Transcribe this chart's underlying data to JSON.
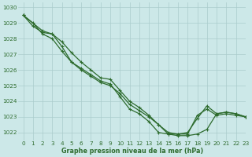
{
  "title": "Graphe pression niveau de la mer (hPa)",
  "bg_color": "#cce8e8",
  "grid_color": "#aacccc",
  "line_color": "#2d6b2d",
  "xlim": [
    -0.5,
    23
  ],
  "ylim": [
    1021.5,
    1030.3
  ],
  "yticks": [
    1022,
    1023,
    1024,
    1025,
    1026,
    1027,
    1028,
    1029,
    1030
  ],
  "xticks": [
    0,
    1,
    2,
    3,
    4,
    5,
    6,
    7,
    8,
    9,
    10,
    11,
    12,
    13,
    14,
    15,
    16,
    17,
    18,
    19,
    20,
    21,
    22,
    23
  ],
  "line1_x": [
    0,
    1,
    2,
    3,
    4,
    5,
    6,
    7,
    8,
    9,
    10,
    11,
    12,
    13,
    14,
    15,
    16,
    17,
    18,
    19,
    20,
    21,
    22,
    23
  ],
  "line1_y": [
    1029.5,
    1029.0,
    1028.3,
    1028.0,
    1027.2,
    1026.5,
    1026.1,
    1025.7,
    1025.3,
    1025.1,
    1024.3,
    1023.5,
    1023.2,
    1022.7,
    1022.0,
    1021.9,
    1021.8,
    1021.8,
    1021.9,
    1022.2,
    1023.2,
    1023.3,
    1023.2,
    1023.0
  ],
  "line2_x": [
    0,
    1,
    2,
    3,
    4,
    5,
    6,
    7,
    8,
    9,
    10,
    11,
    12,
    13,
    14,
    15,
    16,
    17,
    18,
    19,
    20,
    21,
    22,
    23
  ],
  "line2_y": [
    1029.5,
    1028.8,
    1028.4,
    1028.3,
    1027.8,
    1027.1,
    1026.5,
    1026.0,
    1025.5,
    1025.4,
    1024.7,
    1024.0,
    1023.6,
    1023.1,
    1022.5,
    1022.0,
    1021.9,
    1022.0,
    1022.9,
    1023.7,
    1023.2,
    1023.3,
    1023.2,
    1023.0
  ],
  "line3_x": [
    0,
    2,
    3,
    4,
    5,
    6,
    7,
    8,
    9,
    10,
    11,
    12,
    13,
    14,
    15,
    16,
    17,
    18,
    19,
    20,
    21,
    22,
    23
  ],
  "line3_y": [
    1029.5,
    1028.5,
    1028.3,
    1027.5,
    1026.5,
    1026.0,
    1025.6,
    1025.2,
    1025.0,
    1024.5,
    1023.8,
    1023.4,
    1023.0,
    1022.5,
    1021.9,
    1021.9,
    1021.9,
    1023.1,
    1023.5,
    1023.1,
    1023.2,
    1023.1,
    1023.0
  ],
  "lw": 0.9,
  "ms": 3.0,
  "mew": 0.8,
  "tick_fontsize": 5.2,
  "label_fontsize": 5.8
}
